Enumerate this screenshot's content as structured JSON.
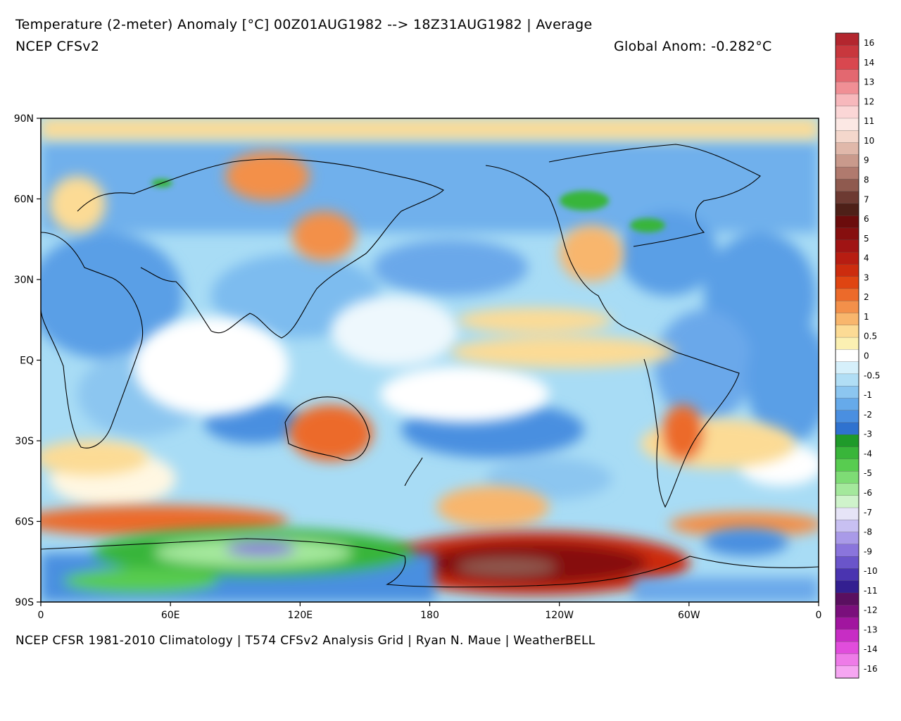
{
  "header": {
    "title": "Temperature (2-meter) Anomaly  [°C] 00Z01AUG1982 --> 18Z31AUG1982 | Average",
    "model": "NCEP CFSv2",
    "global_anomaly": "Global Anom: -0.282°C"
  },
  "footer": {
    "credit": "NCEP CFSR 1981-2010 Climatology | T574 CFSv2 Analysis Grid | Ryan N. Maue | WeatherBELL"
  },
  "axes": {
    "lat_labels": [
      "90N",
      "60N",
      "30N",
      "EQ",
      "30S",
      "60S",
      "90S"
    ],
    "lon_labels": [
      "0",
      "60E",
      "120E",
      "180",
      "120W",
      "60W",
      "0"
    ]
  },
  "colorbar": {
    "labels": [
      "16",
      "14",
      "13",
      "12",
      "11",
      "10",
      "9",
      "8",
      "7",
      "6",
      "5",
      "4",
      "3",
      "2",
      "1",
      "0.5",
      "0",
      "-0.5",
      "-1",
      "-2",
      "-3",
      "-4",
      "-5",
      "-6",
      "-7",
      "-8",
      "-9",
      "-10",
      "-11",
      "-12",
      "-13",
      "-14",
      "-16"
    ],
    "colors": [
      "#b3262e",
      "#c8373d",
      "#d9474f",
      "#e36870",
      "#f08f95",
      "#f7b8bc",
      "#fbd6d6",
      "#fce8e4",
      "#f4d7cc",
      "#e0b8aa",
      "#c99a8c",
      "#b07a6e",
      "#8f5a4f",
      "#6d3a32",
      "#4e2018",
      "#6b0c0c",
      "#860f0f",
      "#a01414",
      "#b71d12",
      "#cc2c0e",
      "#df4512",
      "#ec6a2a",
      "#f3904a",
      "#f8b66d",
      "#fcdb95",
      "#fbf0b2",
      "#ffffff",
      "#d6f0fb",
      "#b1def5",
      "#8cc6f0",
      "#66aaea",
      "#4a8fe0",
      "#2f72cf",
      "#1f9a2a",
      "#39b53a",
      "#58cc50",
      "#7edc75",
      "#a4e89c",
      "#cff3cb",
      "#e6e4f7",
      "#c8c0f2",
      "#a99ae8",
      "#8a75dc",
      "#6a55ca",
      "#4a34b0",
      "#331f90",
      "#5a0f60",
      "#7a0f7c",
      "#a1159f",
      "#c72dc4",
      "#e14ddc",
      "#ee7be8",
      "#f6a6f2"
    ]
  },
  "map_colors": {
    "ocean_base": "#a8dcf5",
    "cold": "#4a8fe0",
    "cool": "#8cc6f0",
    "neutral": "#ffffff",
    "warm": "#fcdb95",
    "hot": "#ec6a2a",
    "very_hot": "#a01414",
    "extreme": "#7a3a35",
    "green_cold": "#39b53a",
    "purple_cold": "#8a75dc"
  }
}
